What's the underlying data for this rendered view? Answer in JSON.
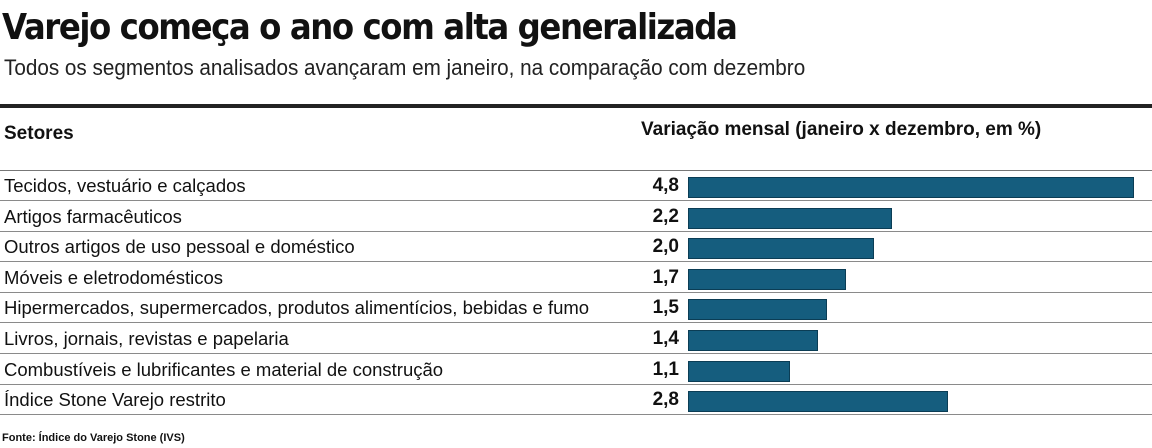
{
  "title": "Varejo começa o ano com alta generalizada",
  "subtitle": "Todos os segmentos analisados avançaram em janeiro, na comparação com dezembro",
  "header": {
    "left": "Setores",
    "right": "Variação mensal (janeiro x dezembro, em %)"
  },
  "source": "Fonte: Índice do Varejo Stone (IVS)",
  "chart_data": {
    "type": "bar",
    "orientation": "horizontal",
    "title": "Varejo começa o ano com alta generalizada",
    "subtitle": "Todos os segmentos analisados avançaram em janeiro, na comparação com dezembro",
    "xlabel": "Variação mensal (janeiro x dezembro, em %)",
    "ylabel": "Setores",
    "xlim": [
      0,
      4.8
    ],
    "bar_color": "#155d7e",
    "categories": [
      "Tecidos, vestuário e calçados",
      "Artigos farmacêuticos",
      "Outros artigos de uso pessoal e doméstico",
      "Móveis e eletrodomésticos",
      "Hipermercados, supermercados, produtos alimentícios, bebidas e fumo",
      "Livros, jornais, revistas e papelaria",
      "Combustíveis e lubrificantes e material de construção",
      "Índice Stone Varejo restrito"
    ],
    "values": [
      4.8,
      2.2,
      2.0,
      1.7,
      1.5,
      1.4,
      1.1,
      2.8
    ],
    "value_labels": [
      "4,8",
      "2,2",
      "2,0",
      "1,7",
      "1,5",
      "1,4",
      "1,1",
      "2,8"
    ]
  }
}
